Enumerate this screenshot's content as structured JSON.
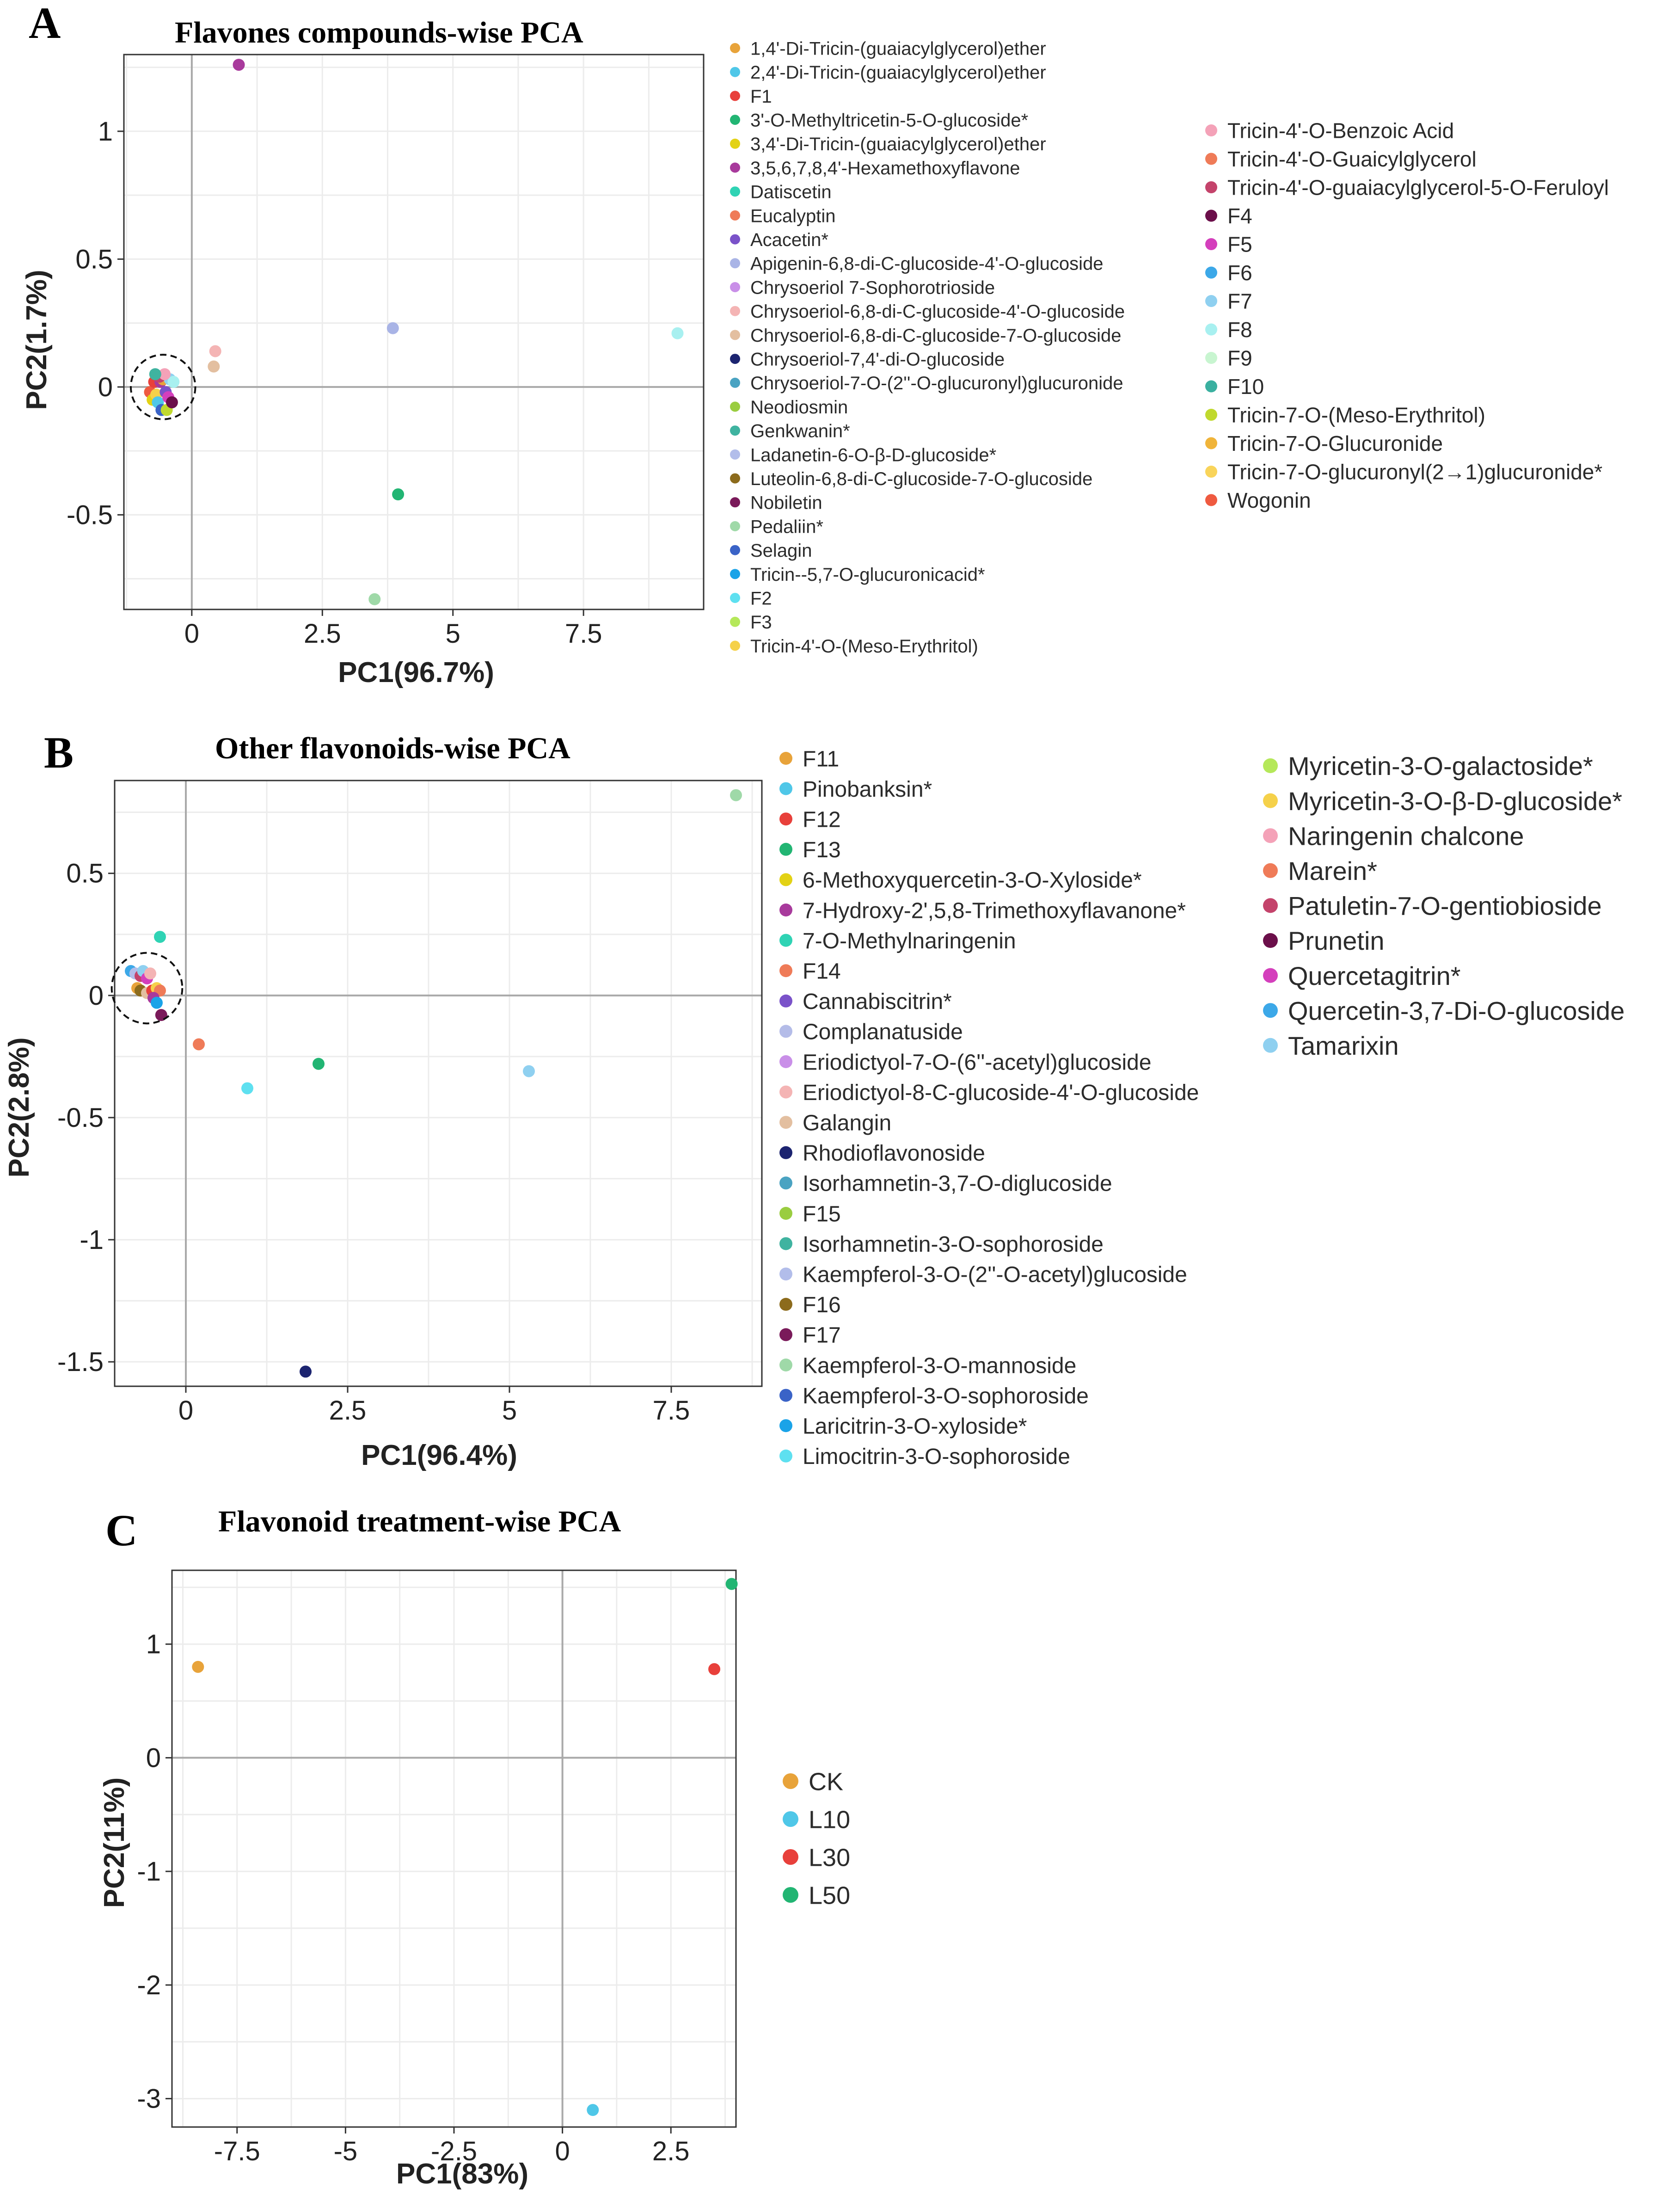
{
  "panel_letters": [
    "A",
    "B",
    "C"
  ],
  "chart_data": [
    {
      "type": "scatter",
      "panel": "A",
      "title": "Flavones compounds-wise PCA",
      "xlabel": "PC1(96.7%)",
      "ylabel": "PC2(1.7%)",
      "xlim": [
        -1.3,
        9.8
      ],
      "ylim": [
        -0.87,
        1.3
      ],
      "xticks": [
        0,
        2.5,
        5,
        7.5
      ],
      "xtick_labels": [
        "0",
        "2.5",
        "5",
        "7.5"
      ],
      "yticks": [
        -0.5,
        0,
        0.5,
        1
      ],
      "ytick_labels": [
        "-0.5",
        "0",
        "0.5",
        "1"
      ],
      "cluster_circle": {
        "cx": -0.55,
        "cy": 0.0,
        "rx": 0.55,
        "ry": 0.14
      },
      "legend_columns": [
        [
          "1,4'-Di-Tricin-(guaiacylglycerol)ether",
          "2,4'-Di-Tricin-(guaiacylglycerol)ether",
          "F1",
          "3'-O-Methyltricetin-5-O-glucoside*",
          "3,4'-Di-Tricin-(guaiacylglycerol)ether",
          "3,5,6,7,8,4'-Hexamethoxyflavone",
          "Datiscetin",
          "Eucalyptin",
          "Acacetin*",
          "Apigenin-6,8-di-C-glucoside-4'-O-glucoside",
          "Chrysoeriol 7-Sophorotrioside",
          "Chrysoeriol-6,8-di-C-glucoside-4'-O-glucoside",
          "Chrysoeriol-6,8-di-C-glucoside-7-O-glucoside",
          "Chrysoeriol-7,4'-di-O-glucoside",
          "Chrysoeriol-7-O-(2''-O-glucuronyl)glucuronide",
          "Neodiosmin",
          "Genkwanin*",
          "Ladanetin-6-O-β-D-glucoside*",
          "Luteolin-6,8-di-C-glucoside-7-O-glucoside",
          "Nobiletin",
          "Pedaliin*",
          "Selagin",
          "Tricin--5,7-O-glucuronicacid*",
          "F2",
          "F3",
          "Tricin-4'-O-(Meso-Erythritol)"
        ],
        [
          "Tricin-4'-O-Benzoic Acid",
          "Tricin-4'-O-Guaicylglycerol",
          "Tricin-4'-O-guaiacylglycerol-5-O-Feruloyl",
          "F4",
          "F5",
          "F6",
          "F7",
          "F8",
          "F9",
          "F10",
          "Tricin-7-O-(Meso-Erythritol)",
          "Tricin-7-O-Glucuronide",
          "Tricin-7-O-glucuronyl(2→1)glucuronide*",
          "Wogonin"
        ]
      ],
      "legend_colors": [
        [
          "#e8a33a",
          "#4fc7e8",
          "#e8403b",
          "#22b573",
          "#e3d215",
          "#a83a9c",
          "#2fd3b4",
          "#ef7b58",
          "#7a52c9",
          "#a9b4e6",
          "#c98fe8",
          "#f4b4b4",
          "#e3bfa0",
          "#1c2470",
          "#4aa3c2",
          "#9acd40",
          "#3fb3a0",
          "#b2bdea",
          "#8c6b1c",
          "#7a1a5a",
          "#9fd9a8",
          "#3a63c7",
          "#1aa3e8",
          "#5ee0f0",
          "#b5e85a",
          "#f5d14a"
        ],
        [
          "#f4a2b8",
          "#ef7b58",
          "#c4436b",
          "#6b0f4a",
          "#d43fbc",
          "#3ca8e8",
          "#8fd0f0",
          "#a8f0f0",
          "#c8f5d0",
          "#3ab0a0",
          "#c0d92e",
          "#f0b43a",
          "#f9d45a",
          "#ef5a40"
        ]
      ],
      "points": [
        {
          "x": 0.9,
          "y": 1.26,
          "color": "#a83a9c"
        },
        {
          "x": 3.85,
          "y": 0.23,
          "color": "#a9b4e6"
        },
        {
          "x": 9.3,
          "y": 0.21,
          "color": "#a8f0f0"
        },
        {
          "x": 0.45,
          "y": 0.14,
          "color": "#f4b4b4"
        },
        {
          "x": 0.42,
          "y": 0.08,
          "color": "#e3bfa0"
        },
        {
          "x": 3.95,
          "y": -0.42,
          "color": "#22b573"
        },
        {
          "x": 3.5,
          "y": -0.83,
          "color": "#9fd9a8"
        },
        {
          "x": -0.8,
          "y": -0.02,
          "color": "#ef5a40"
        },
        {
          "x": -0.72,
          "y": 0.02,
          "color": "#e8403b"
        },
        {
          "x": -0.75,
          "y": -0.05,
          "color": "#e3d215"
        },
        {
          "x": -0.68,
          "y": -0.03,
          "color": "#f5d14a"
        },
        {
          "x": -0.6,
          "y": 0.02,
          "color": "#a83a9c"
        },
        {
          "x": -0.65,
          "y": -0.06,
          "color": "#4fc7e8"
        },
        {
          "x": -0.55,
          "y": 0.03,
          "color": "#e8a33a"
        },
        {
          "x": -0.5,
          "y": -0.02,
          "color": "#7a52c9"
        },
        {
          "x": -0.58,
          "y": -0.09,
          "color": "#3a63c7"
        },
        {
          "x": -0.48,
          "y": -0.09,
          "color": "#c0d92e"
        },
        {
          "x": -0.45,
          "y": -0.04,
          "color": "#d43fbc"
        },
        {
          "x": -0.42,
          "y": 0.03,
          "color": "#8fd0f0"
        },
        {
          "x": -0.35,
          "y": 0.02,
          "color": "#a8f0f0"
        },
        {
          "x": -0.62,
          "y": 0.04,
          "color": "#c4436b"
        },
        {
          "x": -0.52,
          "y": 0.05,
          "color": "#f4a2b8"
        },
        {
          "x": -0.38,
          "y": -0.06,
          "color": "#6b0f4a"
        },
        {
          "x": -0.7,
          "y": 0.05,
          "color": "#3fb3a0"
        }
      ]
    },
    {
      "type": "scatter",
      "panel": "B",
      "title": "Other flavonoids-wise PCA",
      "xlabel": "PC1(96.4%)",
      "ylabel": "PC2(2.8%)",
      "xlim": [
        -1.1,
        8.9
      ],
      "ylim": [
        -1.6,
        0.88
      ],
      "xticks": [
        0,
        2.5,
        5,
        7.5
      ],
      "xtick_labels": [
        "0",
        "2.5",
        "5",
        "7.5"
      ],
      "yticks": [
        -1.5,
        -1,
        -0.5,
        0,
        0.5
      ],
      "ytick_labels": [
        "-1.5",
        "-1",
        "-0.5",
        "0",
        "0.5"
      ],
      "cluster_circle": {
        "cx": -0.6,
        "cy": 0.03,
        "rx": 0.6,
        "ry": 0.13
      },
      "legend_columns": [
        [
          "F11",
          "Pinobanksin*",
          "F12",
          "F13",
          "6-Methoxyquercetin-3-O-Xyloside*",
          "7-Hydroxy-2',5,8-Trimethoxyflavanone*",
          "7-O-Methylnaringenin",
          "F14",
          "Cannabiscitrin*",
          "Complanatuside",
          "Eriodictyol-7-O-(6''-acetyl)glucoside",
          "Eriodictyol-8-C-glucoside-4'-O-glucoside",
          "Galangin",
          "Rhodioflavonoside",
          "Isorhamnetin-3,7-O-diglucoside",
          "F15",
          "Isorhamnetin-3-O-sophoroside",
          "Kaempferol-3-O-(2''-O-acetyl)glucoside",
          "F16",
          "F17",
          "Kaempferol-3-O-mannoside",
          "Kaempferol-3-O-sophoroside",
          "Laricitrin-3-O-xyloside*",
          "Limocitrin-3-O-sophoroside"
        ],
        [
          "Myricetin-3-O-galactoside*",
          "Myricetin-3-O-β-D-glucoside*",
          "Naringenin chalcone",
          "Marein*",
          "Patuletin-7-O-gentiobioside",
          "Prunetin",
          "Quercetagitrin*",
          "Quercetin-3,7-Di-O-glucoside",
          "Tamarixin"
        ]
      ],
      "legend_colors": [
        [
          "#e8a33a",
          "#4fc7e8",
          "#e8403b",
          "#22b573",
          "#e3d215",
          "#a83a9c",
          "#2fd3b4",
          "#ef7b58",
          "#7a52c9",
          "#b4bce8",
          "#c98fe8",
          "#f4b4b4",
          "#e3bfa0",
          "#1c2470",
          "#4aa3c2",
          "#9acd40",
          "#3fb3a0",
          "#b2bdea",
          "#8c6b1c",
          "#7a1a5a",
          "#9fd9a8",
          "#3a63c7",
          "#1aa3e8",
          "#5ee0f0"
        ],
        [
          "#b5e85a",
          "#f5d14a",
          "#f4a2b8",
          "#ef7b58",
          "#c4436b",
          "#6b0f4a",
          "#d43fbc",
          "#3ca8e8",
          "#8fd0f0"
        ]
      ],
      "points": [
        {
          "x": 8.5,
          "y": 0.82,
          "color": "#9fd9a8"
        },
        {
          "x": -0.4,
          "y": 0.24,
          "color": "#2fd3b4"
        },
        {
          "x": 0.2,
          "y": -0.2,
          "color": "#ef7b58"
        },
        {
          "x": 2.05,
          "y": -0.28,
          "color": "#22b573"
        },
        {
          "x": 0.95,
          "y": -0.38,
          "color": "#5ee0f0"
        },
        {
          "x": 5.3,
          "y": -0.31,
          "color": "#8fd0f0"
        },
        {
          "x": 1.85,
          "y": -1.54,
          "color": "#1c2470"
        },
        {
          "x": -0.85,
          "y": 0.1,
          "color": "#3ca8e8"
        },
        {
          "x": -0.78,
          "y": 0.09,
          "color": "#b2bdea"
        },
        {
          "x": -0.7,
          "y": 0.08,
          "color": "#c4436b"
        },
        {
          "x": -0.66,
          "y": 0.1,
          "color": "#8fd0f0"
        },
        {
          "x": -0.6,
          "y": 0.07,
          "color": "#d43fbc"
        },
        {
          "x": -0.55,
          "y": 0.09,
          "color": "#f4b4b4"
        },
        {
          "x": -0.75,
          "y": 0.03,
          "color": "#e8a33a"
        },
        {
          "x": -0.7,
          "y": 0.02,
          "color": "#8c6b1c"
        },
        {
          "x": -0.6,
          "y": 0.01,
          "color": "#e3bfa0"
        },
        {
          "x": -0.52,
          "y": 0.02,
          "color": "#e8403b"
        },
        {
          "x": -0.45,
          "y": 0.03,
          "color": "#f5d14a"
        },
        {
          "x": -0.4,
          "y": 0.02,
          "color": "#ef7b58"
        },
        {
          "x": -0.5,
          "y": -0.01,
          "color": "#a83a9c"
        },
        {
          "x": -0.45,
          "y": -0.03,
          "color": "#1aa3e8"
        },
        {
          "x": -0.38,
          "y": -0.08,
          "color": "#7a1a5a"
        }
      ]
    },
    {
      "type": "scatter",
      "panel": "C",
      "title": "Flavonoid treatment-wise PCA",
      "xlabel": "PC1(83%)",
      "ylabel": "PC2(11%)",
      "xlim": [
        -9.0,
        4.0
      ],
      "ylim": [
        -3.25,
        1.65
      ],
      "xticks": [
        -7.5,
        -5,
        -2.5,
        0,
        2.5
      ],
      "xtick_labels": [
        "-7.5",
        "-5",
        "-2.5",
        "0",
        "2.5"
      ],
      "yticks": [
        -3,
        -2,
        -1,
        0,
        1
      ],
      "ytick_labels": [
        "-3",
        "-2",
        "-1",
        "0",
        "1"
      ],
      "legend_columns": [
        [
          "CK",
          "L10",
          "L30",
          "L50"
        ]
      ],
      "legend_colors": [
        [
          "#e8a33a",
          "#4fc7e8",
          "#e8403b",
          "#22b573"
        ]
      ],
      "points": [
        {
          "label": "CK",
          "x": -8.4,
          "y": 0.8,
          "color": "#e8a33a"
        },
        {
          "label": "L10",
          "x": 0.7,
          "y": -3.1,
          "color": "#4fc7e8"
        },
        {
          "label": "L30",
          "x": 3.5,
          "y": 0.78,
          "color": "#e8403b"
        },
        {
          "label": "L50",
          "x": 3.9,
          "y": 1.53,
          "color": "#22b573"
        }
      ]
    }
  ]
}
